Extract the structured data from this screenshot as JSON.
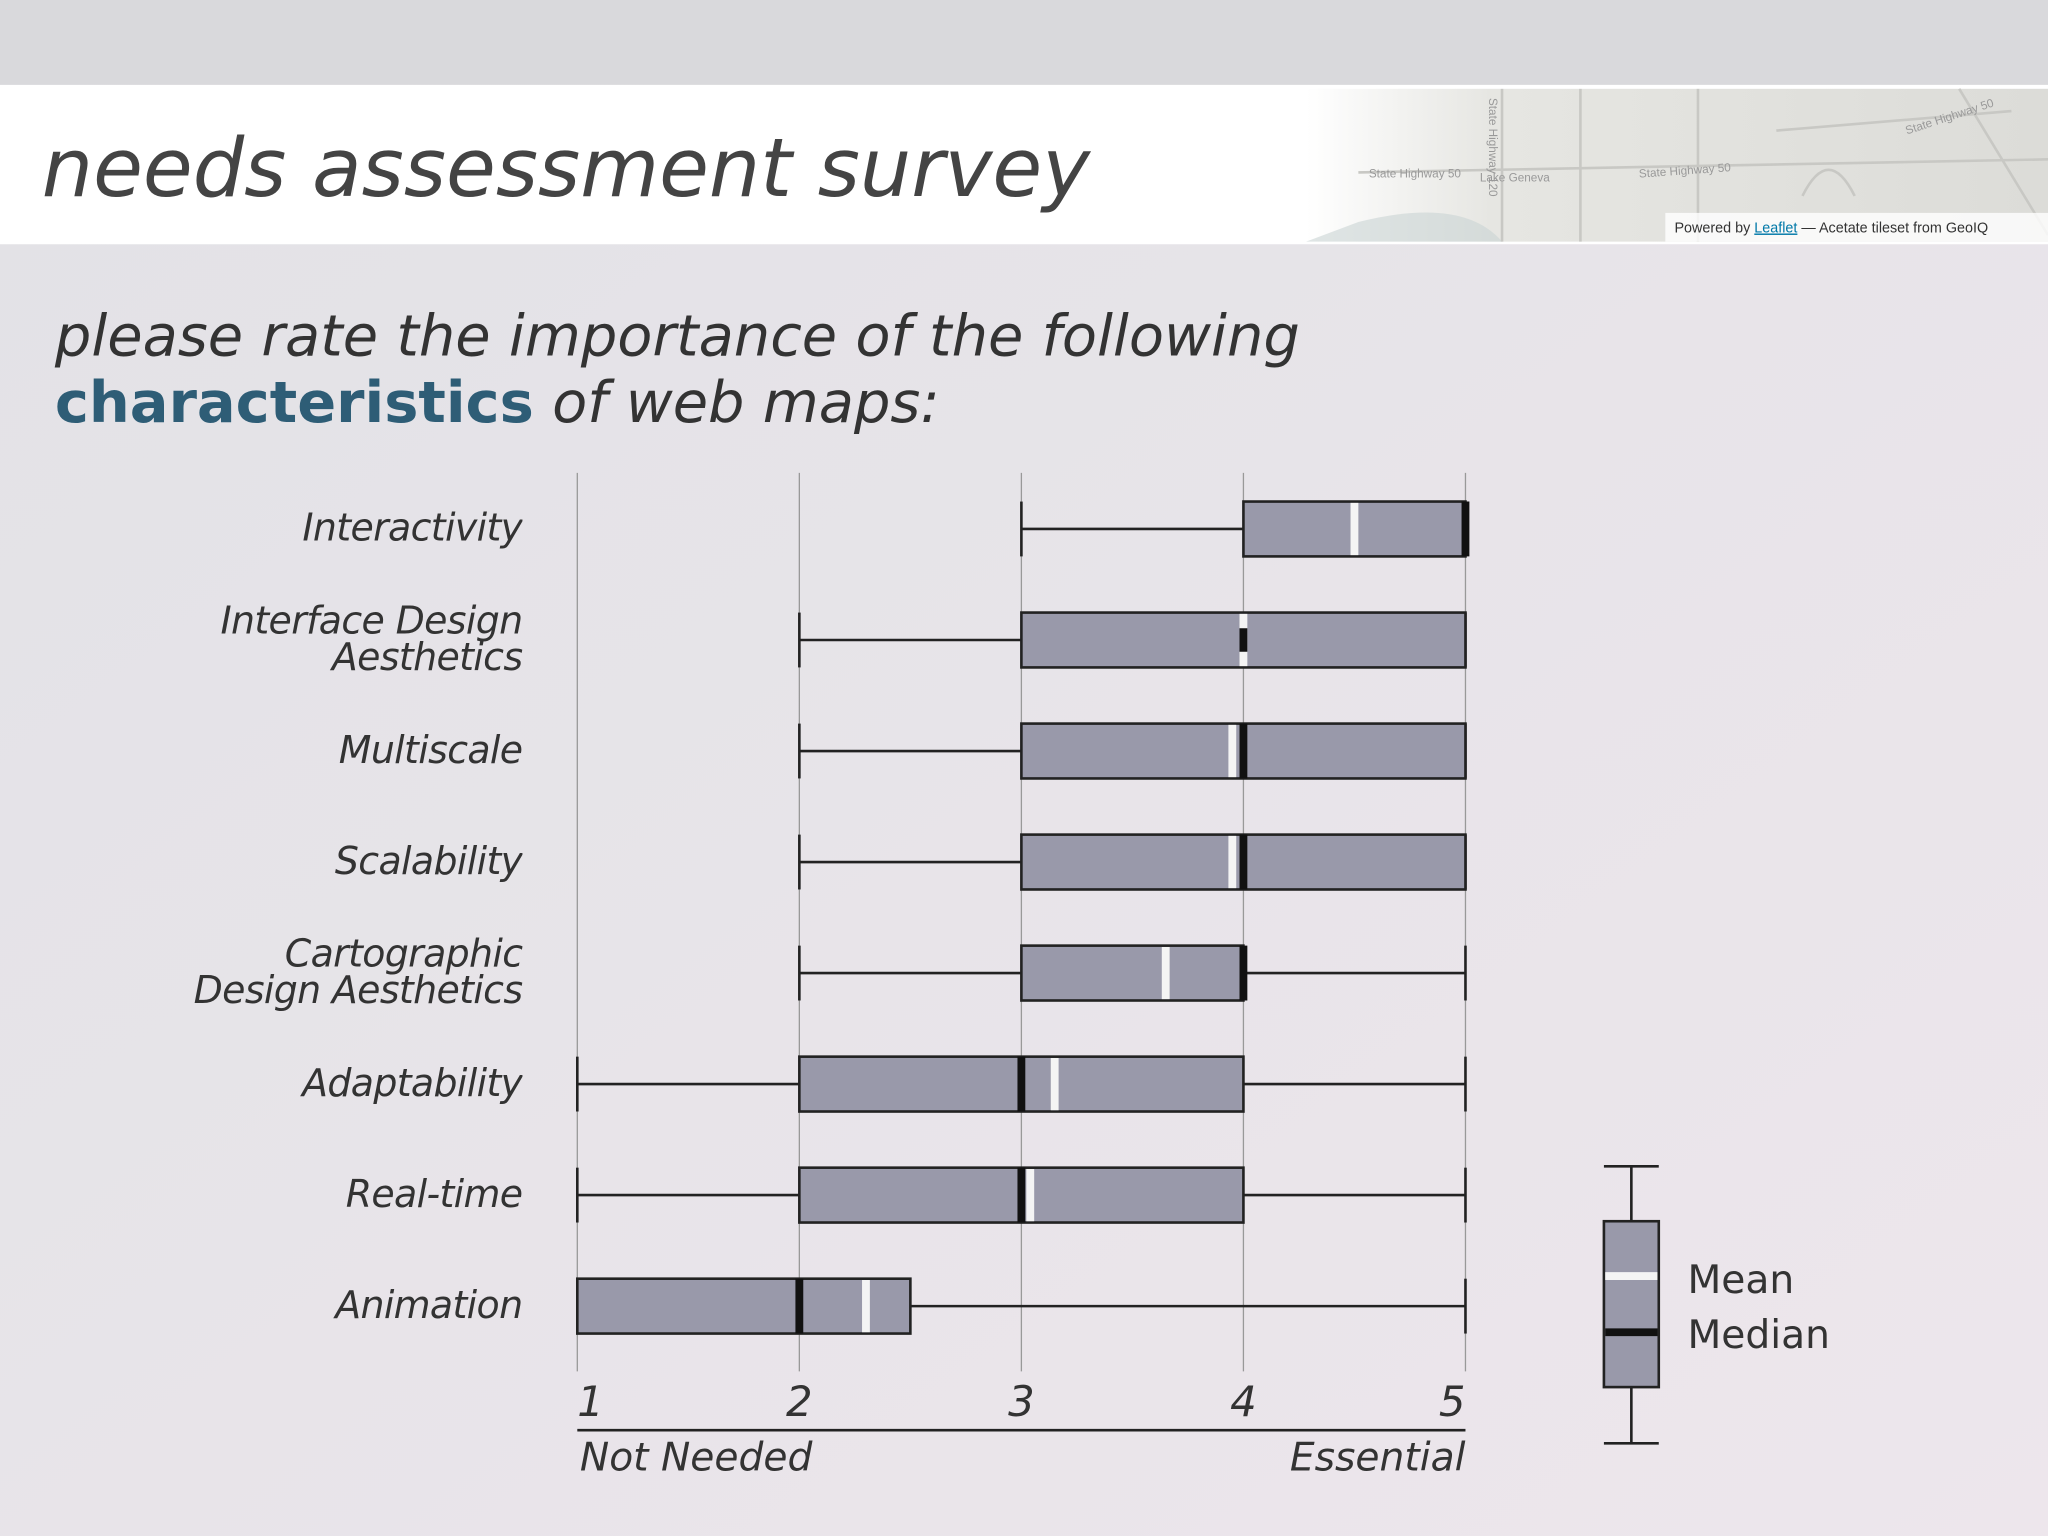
{
  "slide": {
    "title": "needs assessment survey",
    "subtitle": "please rate the importance of the following",
    "emphasis": "characteristics",
    "subtitle_end": "of web maps:"
  },
  "map": {
    "labels": [
      "State Highway 50",
      "Lake Geneva",
      "State Highway 120",
      "State Highway 50",
      "State Highway 50"
    ],
    "attribution": [
      "Powered by",
      "Leaflet",
      "— Acetate tileset from GeoIQ"
    ]
  },
  "chart_data": {
    "type": "box",
    "categories": [
      "Interactivity",
      "Interface Design\nAesthetics",
      "Multiscale",
      "Scalability",
      "Cartographic\nDesign Aesthetics",
      "Adaptability",
      "Real-time",
      "Animation"
    ],
    "boxes": [
      {
        "min": 3,
        "q1": 4,
        "median": 5,
        "q3": 5,
        "max": 5,
        "mean": 4.5
      },
      {
        "min": 2,
        "q1": 3,
        "median": 4,
        "q3": 5,
        "max": 5,
        "mean": 4
      },
      {
        "min": 2,
        "q1": 3,
        "median": 4,
        "q3": 5,
        "max": 5,
        "mean": 3.95
      },
      {
        "min": 2,
        "q1": 3,
        "median": 4,
        "q3": 5,
        "max": 5,
        "mean": 3.95
      },
      {
        "min": 2,
        "q1": 3,
        "median": 4,
        "q3": 4,
        "max": 5,
        "mean": 3.65
      },
      {
        "min": 1,
        "q1": 2,
        "median": 3,
        "q3": 4,
        "max": 5,
        "mean": 3.15
      },
      {
        "min": 1,
        "q1": 2,
        "median": 3,
        "q3": 4,
        "max": 5,
        "mean": 3.04
      },
      {
        "min": 1,
        "q1": 1,
        "median": 2,
        "q3": 2.5,
        "max": 5,
        "mean": 2.3
      }
    ],
    "xlim": [
      1,
      5
    ],
    "xticks": [
      1,
      2,
      3,
      4,
      5
    ],
    "grid": true,
    "x_label_left": "Not Needed",
    "x_label_right": "Essential",
    "box_color": "#9999aa",
    "mean_color": "#f4f4f4",
    "median_color": "#111111",
    "legend": {
      "mean": "Mean",
      "median": "Median"
    }
  }
}
